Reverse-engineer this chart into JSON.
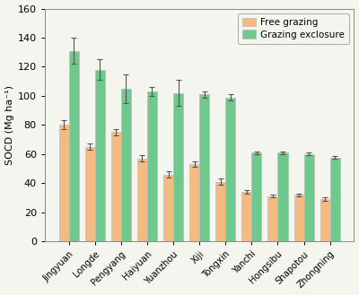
{
  "categories": [
    "Jingyuan",
    "Longde",
    "Pengyang",
    "Haiyuan",
    "Yuanzhou",
    "Xiji",
    "Tongxin",
    "Yanchi",
    "Hongsibu",
    "Shapotou",
    "Zhongning"
  ],
  "free_grazing": [
    80,
    65,
    75,
    57,
    46,
    53,
    41,
    34,
    31,
    32,
    29
  ],
  "grazing_exclosure": [
    131,
    118,
    105,
    103,
    102,
    101,
    99,
    61,
    61,
    60,
    57.5
  ],
  "free_grazing_err": [
    3,
    2,
    2,
    2,
    2,
    2,
    2,
    1,
    1,
    1,
    1
  ],
  "grazing_exclosure_err": [
    9,
    7,
    10,
    3,
    9,
    2,
    2,
    1,
    1,
    1,
    1
  ],
  "free_grazing_color": "#F5BA80",
  "grazing_exclosure_color": "#6DC98C",
  "ylabel": "SOCD (Mg ha⁻¹)",
  "ylim": [
    0,
    160
  ],
  "yticks": [
    0,
    20,
    40,
    60,
    80,
    100,
    120,
    140,
    160
  ],
  "legend_labels": [
    "Free grazing",
    "Grazing exclosure"
  ],
  "bar_width": 0.38,
  "capsize": 2.5,
  "figsize": [
    4.0,
    3.29
  ],
  "dpi": 100
}
